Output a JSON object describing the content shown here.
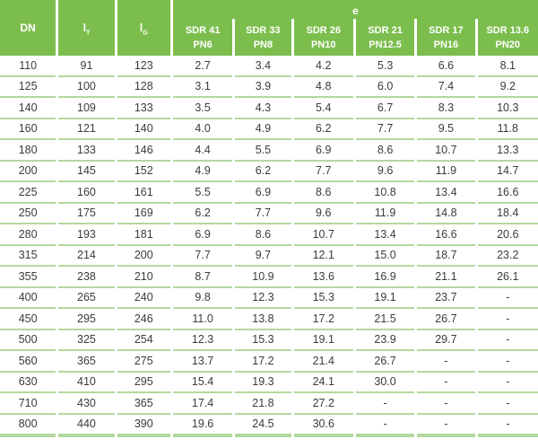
{
  "colors": {
    "header_green": "#7cbe4e",
    "separator_green": "#b3d89e",
    "header_text": "#ffffff",
    "body_text": "#3b3b3b"
  },
  "header": {
    "e_label": "e",
    "static_cols": [
      {
        "label": "DN",
        "sub": ""
      },
      {
        "label": "l",
        "sub": "T"
      },
      {
        "label": "l",
        "sub": "G"
      }
    ],
    "sdr_cols": [
      {
        "sdr": "SDR 41",
        "pn": "PN6"
      },
      {
        "sdr": "SDR 33",
        "pn": "PN8"
      },
      {
        "sdr": "SDR 26",
        "pn": "PN10"
      },
      {
        "sdr": "SDR 21",
        "pn": "PN12.5"
      },
      {
        "sdr": "SDR 17",
        "pn": "PN16"
      },
      {
        "sdr": "SDR 13.6",
        "pn": "PN20"
      }
    ]
  },
  "rows": [
    [
      "110",
      "91",
      "123",
      "2.7",
      "3.4",
      "4.2",
      "5.3",
      "6.6",
      "8.1"
    ],
    [
      "125",
      "100",
      "128",
      "3.1",
      "3.9",
      "4.8",
      "6.0",
      "7.4",
      "9.2"
    ],
    [
      "140",
      "109",
      "133",
      "3.5",
      "4.3",
      "5.4",
      "6.7",
      "8.3",
      "10.3"
    ],
    [
      "160",
      "121",
      "140",
      "4.0",
      "4.9",
      "6.2",
      "7.7",
      "9.5",
      "11.8"
    ],
    [
      "180",
      "133",
      "146",
      "4.4",
      "5.5",
      "6.9",
      "8.6",
      "10.7",
      "13.3"
    ],
    [
      "200",
      "145",
      "152",
      "4.9",
      "6.2",
      "7.7",
      "9.6",
      "11.9",
      "14.7"
    ],
    [
      "225",
      "160",
      "161",
      "5.5",
      "6.9",
      "8.6",
      "10.8",
      "13.4",
      "16.6"
    ],
    [
      "250",
      "175",
      "169",
      "6.2",
      "7.7",
      "9.6",
      "11.9",
      "14.8",
      "18.4"
    ],
    [
      "280",
      "193",
      "181",
      "6.9",
      "8.6",
      "10.7",
      "13.4",
      "16.6",
      "20.6"
    ],
    [
      "315",
      "214",
      "200",
      "7.7",
      "9.7",
      "12.1",
      "15.0",
      "18.7",
      "23.2"
    ],
    [
      "355",
      "238",
      "210",
      "8.7",
      "10.9",
      "13.6",
      "16.9",
      "21.1",
      "26.1"
    ],
    [
      "400",
      "265",
      "240",
      "9.8",
      "12.3",
      "15.3",
      "19.1",
      "23.7",
      "-"
    ],
    [
      "450",
      "295",
      "246",
      "11.0",
      "13.8",
      "17.2",
      "21.5",
      "26.7",
      "-"
    ],
    [
      "500",
      "325",
      "254",
      "12.3",
      "15.3",
      "19.1",
      "23.9",
      "29.7",
      "-"
    ],
    [
      "560",
      "365",
      "275",
      "13.7",
      "17.2",
      "21.4",
      "26.7",
      "-",
      "-"
    ],
    [
      "630",
      "410",
      "295",
      "15.4",
      "19.3",
      "24.1",
      "30.0",
      "-",
      "-"
    ],
    [
      "710",
      "430",
      "365",
      "17.4",
      "21.8",
      "27.2",
      "-",
      "-",
      "-"
    ],
    [
      "800",
      "440",
      "390",
      "19.6",
      "24.5",
      "30.6",
      "-",
      "-",
      "-"
    ]
  ]
}
